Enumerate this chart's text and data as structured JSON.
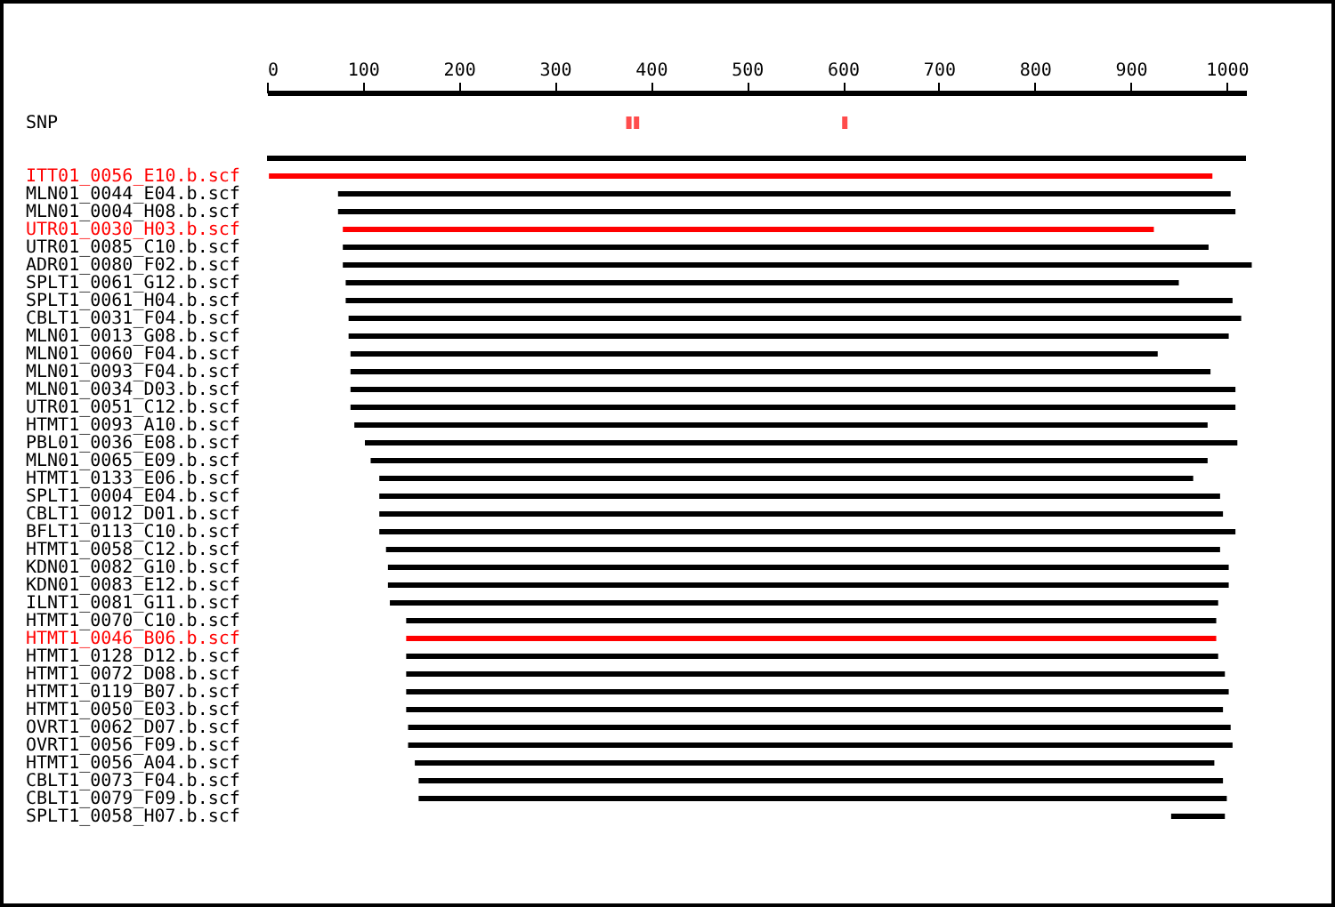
{
  "chart_data": {
    "type": "bar",
    "orientation": "horizontal",
    "categories": [
      "SNP",
      null,
      null,
      "ITT01_0056_E10.b.scf",
      "MLN01_0044_E04.b.scf",
      "MLN01_0004_H08.b.scf",
      "UTR01_0030_H03.b.scf",
      "UTR01_0085_C10.b.scf",
      "ADR01_0080_F02.b.scf",
      "SPLT1_0061_G12.b.scf",
      "SPLT1_0061_H04.b.scf",
      "CBLT1_0031_F04.b.scf",
      "MLN01_0013_G08.b.scf",
      "MLN01_0060_F04.b.scf",
      "MLN01_0093_F04.b.scf",
      "MLN01_0034_D03.b.scf",
      "UTR01_0051_C12.b.scf",
      "HTMT1_0093_A10.b.scf",
      "PBL01_0036_E08.b.scf",
      "MLN01_0065_E09.b.scf",
      "HTMT1_0133_E06.b.scf",
      "SPLT1_0004_E04.b.scf",
      "CBLT1_0012_D01.b.scf",
      "BFLT1_0113_C10.b.scf",
      "HTMT1_0058_C12.b.scf",
      "KDN01_0082_G10.b.scf",
      "KDN01_0083_E12.b.scf",
      "ILNT1_0081_G11.b.scf",
      "HTMT1_0070_C10.b.scf",
      "HTMT1_0046_B06.b.scf",
      "HTMT1_0128_D12.b.scf",
      "HTMT1_0072_D08.b.scf",
      "HTMT1_0119_B07.b.scf",
      "HTMT1_0050_E03.b.scf",
      "OVRT1_0062_D07.b.scf",
      "OVRT1_0056_F09.b.scf",
      "HTMT1_0056_A04.b.scf",
      "CBLT1_0073_F04.b.scf",
      "CBLT1_0079_F09.b.scf",
      "SPLT1_0058_H07.b.scf"
    ],
    "series": [
      {
        "base": [
          null,
          null,
          0,
          2,
          74,
          74,
          79,
          79,
          79,
          82,
          82,
          85,
          85,
          87,
          87,
          87,
          87,
          91,
          102,
          108,
          117,
          117,
          117,
          117,
          124,
          126,
          126,
          128,
          145,
          145,
          145,
          145,
          145,
          145,
          147,
          147,
          154,
          158,
          158,
          942
        ],
        "values": [
          null,
          null,
          1020,
          983,
          930,
          935,
          845,
          902,
          947,
          868,
          924,
          930,
          917,
          841,
          896,
          922,
          922,
          889,
          909,
          872,
          848,
          876,
          879,
          892,
          869,
          876,
          876,
          863,
          844,
          844,
          846,
          853,
          857,
          851,
          857,
          859,
          833,
          838,
          842,
          56
        ],
        "colors": [
          null,
          null,
          "#000000",
          "#ff0000",
          "#000000",
          "#000000",
          "#ff0000",
          "#000000",
          "#000000",
          "#000000",
          "#000000",
          "#000000",
          "#000000",
          "#000000",
          "#000000",
          "#000000",
          "#000000",
          "#000000",
          "#000000",
          "#000000",
          "#000000",
          "#000000",
          "#000000",
          "#000000",
          "#000000",
          "#000000",
          "#000000",
          "#000000",
          "#000000",
          "#ff0000",
          "#000000",
          "#000000",
          "#000000",
          "#000000",
          "#000000",
          "#000000",
          "#000000",
          "#000000",
          "#000000",
          "#000000"
        ]
      },
      {
        "type": "scatter",
        "x": [
          "SNP",
          "SNP",
          "SNP"
        ],
        "values": [
          377,
          385,
          602
        ],
        "color": "#ff0000"
      }
    ],
    "xlim": [
      0,
      1020
    ],
    "xticks": [
      0,
      100,
      200,
      300,
      400,
      500,
      600,
      700,
      800,
      900,
      1000
    ],
    "grid": false
  }
}
